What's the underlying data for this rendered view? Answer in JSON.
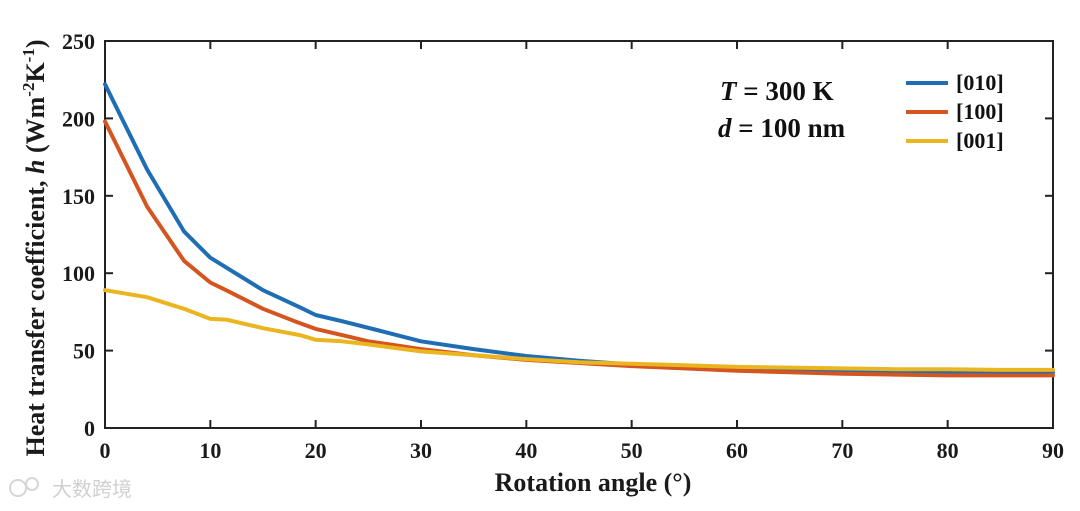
{
  "chart_data": {
    "type": "line",
    "title": "",
    "xlabel": "Rotation angle (°)",
    "ylabel": {
      "pre": "Heat transfer coefficient, ",
      "italic": "h",
      "mid1": " (Wm",
      "sup1": "-2",
      "mid2": "K",
      "sup2": "-1",
      "post": ")"
    },
    "xlim": [
      0,
      90
    ],
    "ylim": [
      0,
      250
    ],
    "xticks": [
      "0",
      "10",
      "20",
      "30",
      "40",
      "50",
      "60",
      "70",
      "80",
      "90"
    ],
    "yticks": [
      "0",
      "50",
      "100",
      "150",
      "200",
      "250"
    ],
    "annotations": {
      "line1": {
        "italic": "T",
        "text": " = 300 K"
      },
      "line2": {
        "italic": "d",
        "text": " = 100 nm"
      }
    },
    "legend_position": "top-right",
    "series": [
      {
        "name": "[010]",
        "color": "#1f6eb5",
        "x": [
          0,
          4,
          7.5,
          10,
          15,
          18.5,
          20,
          22.5,
          26,
          30,
          35,
          40,
          45,
          50,
          55,
          60,
          65,
          70,
          75,
          80,
          85,
          90
        ],
        "y": [
          222,
          167,
          127,
          110,
          89,
          78,
          73,
          69,
          63,
          56,
          51,
          46.5,
          43.5,
          41,
          39.5,
          38,
          37,
          36.5,
          36,
          36,
          36,
          36
        ]
      },
      {
        "name": "[100]",
        "color": "#d4551f",
        "x": [
          0,
          4,
          7.5,
          10,
          11.5,
          15,
          18,
          20,
          22.5,
          25,
          30,
          35,
          40,
          45,
          50,
          55,
          60,
          65,
          70,
          75,
          80,
          85,
          90
        ],
        "y": [
          198,
          143,
          108,
          94,
          89,
          77,
          69,
          64,
          60,
          56,
          51,
          47,
          44,
          42,
          40,
          38.5,
          37,
          36,
          35,
          34.5,
          34,
          34,
          34
        ]
      },
      {
        "name": "[001]",
        "color": "#ebb51f",
        "x": [
          0,
          4,
          7.5,
          10,
          11.5,
          15,
          18.5,
          20,
          22.5,
          25,
          30,
          35,
          40,
          45,
          50,
          55,
          60,
          65,
          70,
          75,
          80,
          85,
          90
        ],
        "y": [
          89,
          84.5,
          77,
          70.5,
          70,
          64.5,
          60,
          57,
          56,
          54,
          49.5,
          47,
          44.5,
          42.5,
          41.5,
          40.5,
          39.5,
          39,
          38.5,
          38,
          38,
          37.5,
          37.5
        ]
      }
    ]
  },
  "watermark": "大数跨境"
}
